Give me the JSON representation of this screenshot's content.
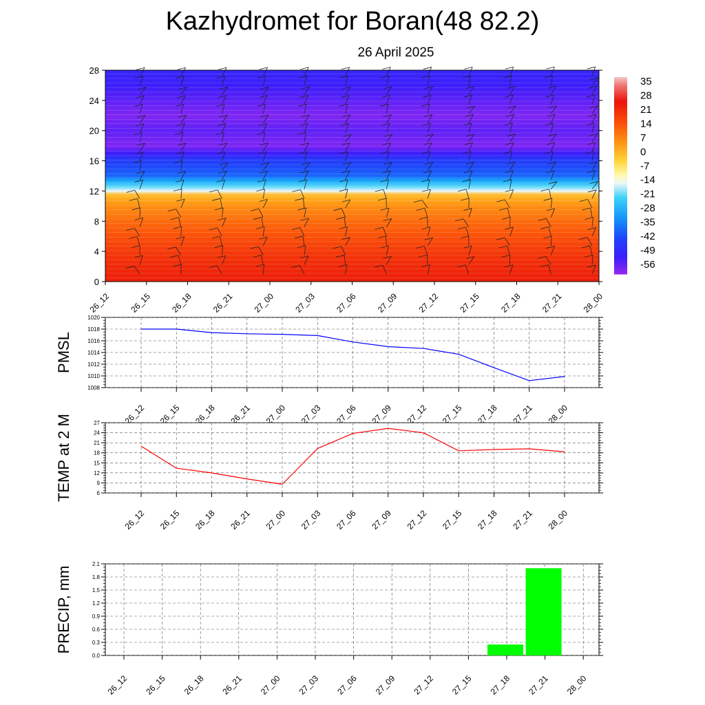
{
  "title": "Kazhydromet for Boran(48 82.2)",
  "subtitle": "26 April 2025",
  "time_labels": [
    "26_12",
    "26_15",
    "26_18",
    "26_21",
    "27_00",
    "27_03",
    "27_06",
    "27_09",
    "27_12",
    "27_15",
    "27_18",
    "27_21",
    "28_00"
  ],
  "chart_data": [
    {
      "type": "heatmap",
      "variable": "temperature with height and wind barbs",
      "ylim": [
        0,
        28
      ],
      "yticks": [
        "0",
        "4",
        "8",
        "12",
        "16",
        "20",
        "24",
        "28"
      ],
      "colorbar": {
        "labels": [
          "35",
          "28",
          "21",
          "14",
          "7",
          "0",
          "-7",
          "-14",
          "-21",
          "-28",
          "-35",
          "-42",
          "-49",
          "-56"
        ],
        "range": [
          -60,
          38
        ]
      },
      "profile_levels": [
        0,
        2,
        4,
        6,
        8,
        10,
        11.5,
        12,
        13,
        14,
        16,
        17,
        18,
        20,
        22,
        24,
        26,
        28
      ],
      "profile_temp": [
        24,
        22,
        19,
        15,
        11,
        6,
        0,
        -15,
        -25,
        -38,
        -44,
        -52,
        -58,
        -55,
        -58,
        -55,
        -52,
        -50
      ]
    },
    {
      "type": "line",
      "ylabel": "PMSL",
      "ylim": [
        1008,
        1020
      ],
      "yticks": [
        "1008",
        "1010",
        "1012",
        "1014",
        "1016",
        "1018",
        "1020"
      ],
      "values": [
        1018,
        1018,
        1017.4,
        1017.2,
        1017.1,
        1016.9,
        1015.8,
        1015,
        1014.7,
        1013.7,
        1011.4,
        1009.2,
        1009.9
      ],
      "color": "#0000ff"
    },
    {
      "type": "line",
      "ylabel": "TEMP at 2 M",
      "ylim": [
        6,
        27
      ],
      "yticks": [
        "6",
        "9",
        "12",
        "15",
        "18",
        "21",
        "24",
        "27"
      ],
      "values": [
        20,
        13.4,
        12,
        10.2,
        8.6,
        19.3,
        23.8,
        25.3,
        24,
        18.6,
        19,
        19.2,
        18.3
      ],
      "color": "#ff0000"
    },
    {
      "type": "bar",
      "ylabel": "PRECIP, mm",
      "ylim": [
        0,
        2.1
      ],
      "yticks": [
        "0.0",
        "0.3",
        "0.6",
        "0.9",
        "1.2",
        "1.5",
        "1.8",
        "2.1"
      ],
      "values": [
        0,
        0,
        0,
        0,
        0,
        0,
        0,
        0,
        0,
        0,
        0.25,
        2.0,
        0
      ],
      "color": "#00ff00"
    }
  ]
}
